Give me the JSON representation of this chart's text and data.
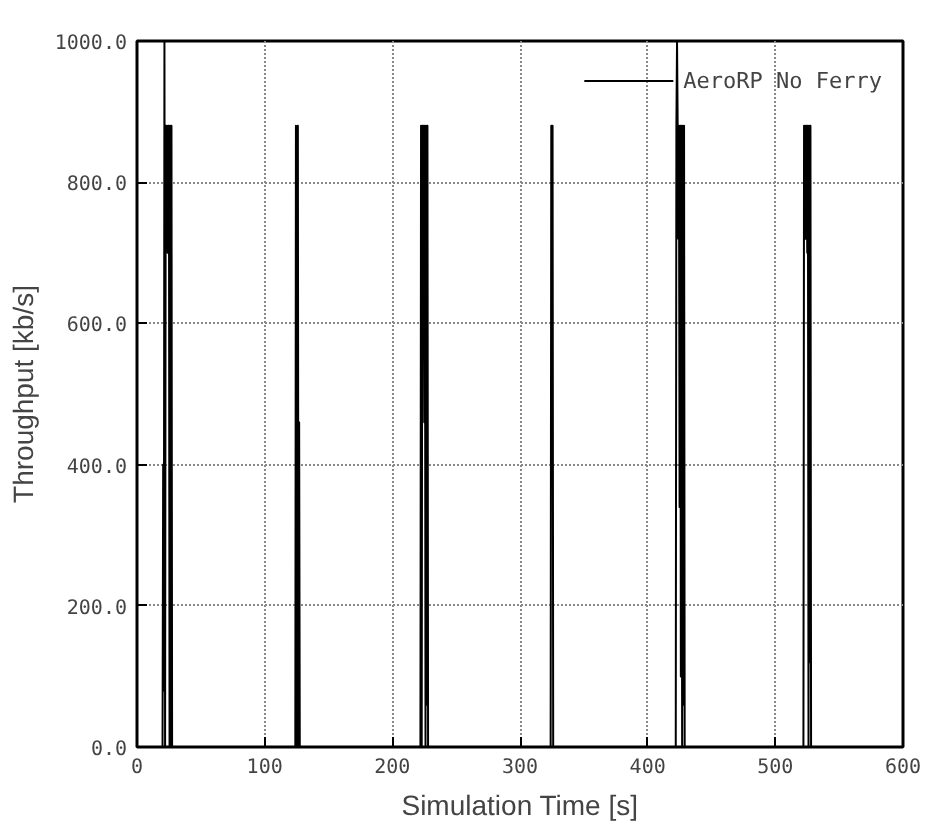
{
  "chart_data": {
    "type": "line",
    "xlabel": "Simulation Time [s]",
    "ylabel": "Throughput [kb/s]",
    "xlim": [
      0,
      600
    ],
    "ylim": [
      0,
      1000
    ],
    "xticks": [
      0,
      100,
      200,
      300,
      400,
      500,
      600
    ],
    "yticks": [
      {
        "value": 0,
        "label": "0.0"
      },
      {
        "value": 200,
        "label": "200.0"
      },
      {
        "value": 400,
        "label": "400.0"
      },
      {
        "value": 600,
        "label": "600.0"
      },
      {
        "value": 800,
        "label": "800.0"
      },
      {
        "value": 1000,
        "label": "1000.0"
      }
    ],
    "grid": true,
    "legend": "top right",
    "line_style": "solid",
    "marker": "none",
    "series": [
      {
        "name": "AeroRP No Ferry",
        "color": "#000000",
        "x": [
          0,
          20,
          20.5,
          21,
          21.5,
          22,
          22.5,
          23,
          23.5,
          24,
          24.5,
          25,
          25.5,
          26,
          26.5,
          27,
          27.5,
          28,
          124,
          124.5,
          125,
          125.5,
          126,
          126.5,
          127,
          127.5,
          222,
          222.5,
          223,
          223.5,
          224,
          224.5,
          225,
          225.5,
          226,
          226.5,
          227,
          227.5,
          228,
          324,
          324.5,
          325,
          325.5,
          326,
          326.5,
          422,
          422.5,
          423,
          423.5,
          424,
          424.5,
          425,
          425.5,
          426,
          426.5,
          427,
          427.5,
          428,
          428.5,
          429,
          522,
          522.5,
          523,
          523.5,
          524,
          524.5,
          525,
          525.5,
          526,
          526.5,
          527,
          527.5,
          528,
          600
        ],
        "values": [
          0,
          0,
          400,
          80,
          1000,
          0,
          880,
          720,
          880,
          700,
          880,
          880,
          0,
          880,
          0,
          880,
          0,
          0,
          0,
          880,
          0,
          640,
          880,
          0,
          460,
          0,
          0,
          880,
          0,
          880,
          720,
          880,
          460,
          880,
          0,
          880,
          60,
          880,
          0,
          0,
          880,
          720,
          880,
          0,
          0,
          0,
          880,
          1000,
          880,
          720,
          880,
          340,
          880,
          100,
          880,
          0,
          880,
          60,
          880,
          0,
          0,
          880,
          720,
          880,
          720,
          880,
          700,
          880,
          0,
          880,
          120,
          880,
          0,
          0
        ]
      }
    ]
  }
}
